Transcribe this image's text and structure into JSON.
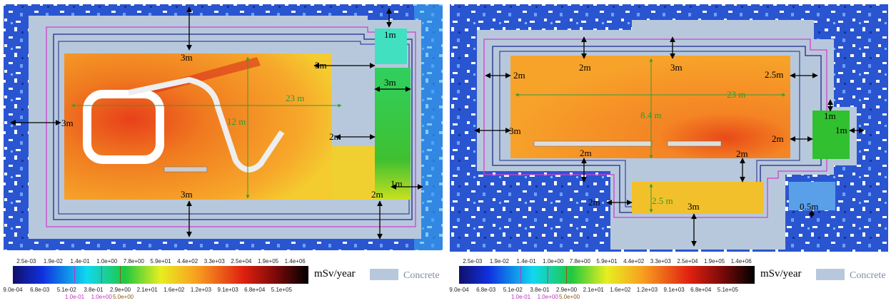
{
  "panels": [
    {
      "labels": [
        "3m",
        "1m",
        "3m",
        "3m",
        "23 m",
        "12 m",
        "3m",
        "2m",
        "1m",
        "2m",
        "3m"
      ],
      "colorbar": {
        "top_ticks": [
          "2.5e-03",
          "1.9e-02",
          "1.4e-01",
          "1.0e+00",
          "7.8e+00",
          "5.9e+01",
          "4.4e+02",
          "3.3e+03",
          "2.5e+04",
          "1.9e+05",
          "1.4e+06"
        ],
        "bottom_ticks": [
          "9.0e-04",
          "6.8e-03",
          "5.1e-02",
          "3.8e-01",
          "2.9e+00",
          "2.1e+01",
          "1.6e+02",
          "1.2e+03",
          "9.1e+03",
          "6.8e+04",
          "5.1e+05"
        ],
        "contour_ticks": [
          "1.0e-01",
          "1.0e+00",
          "5.0e+00"
        ]
      },
      "unit": "mSv/year",
      "legend": "Concrete"
    },
    {
      "labels": [
        "2m",
        "2m",
        "3m",
        "2.5m",
        "23 m",
        "8.4 m",
        "3m",
        "1m",
        "1m",
        "2m",
        "2m",
        "2m",
        "2m",
        "2.5 m",
        "3m",
        "0.5m"
      ],
      "colorbar": {
        "top_ticks": [
          "2.5e-03",
          "1.9e-02",
          "1.4e-01",
          "1.0e+00",
          "7.8e+00",
          "5.9e+01",
          "4.4e+02",
          "3.3e+03",
          "2.5e+04",
          "1.9e+05",
          "1.4e+06"
        ],
        "bottom_ticks": [
          "9.0e-04",
          "6.8e-03",
          "5.1e-02",
          "3.8e-01",
          "2.9e+00",
          "2.1e+01",
          "1.6e+02",
          "1.2e+03",
          "9.1e+03",
          "6.8e+04",
          "5.1e+05"
        ],
        "contour_ticks": [
          "1.0e-01",
          "1.0e+00",
          "5.0e+00"
        ]
      },
      "unit": "mSv/year",
      "legend": "Concrete"
    }
  ]
}
